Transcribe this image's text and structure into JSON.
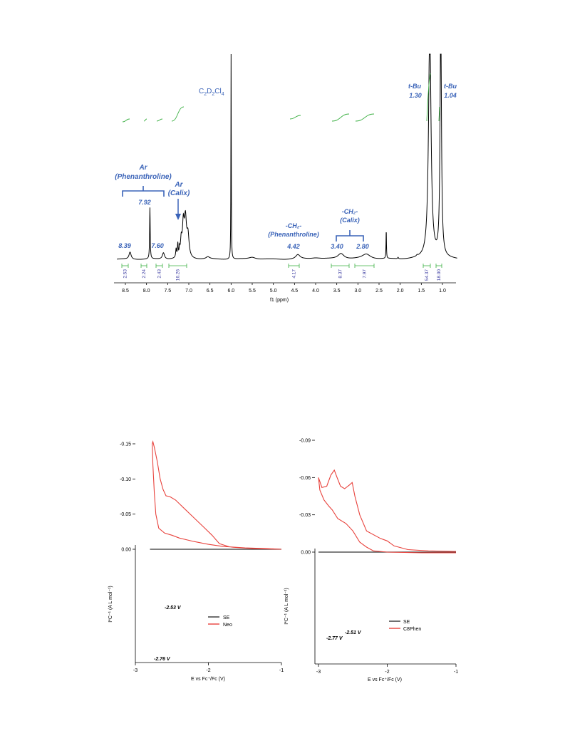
{
  "chart_data": [
    {
      "type": "line",
      "xlabel": "f1 (ppm)",
      "xlim": [
        8.7,
        0.6
      ],
      "x_ticks": [
        "8.5",
        "8.0",
        "7.5",
        "7.0",
        "6.5",
        "6.0",
        "5.5",
        "5.0",
        "4.5",
        "4.0",
        "3.5",
        "3.0",
        "2.5",
        "2.0",
        "1.5",
        "1.0"
      ],
      "solvent_label": "C2D2Cl4",
      "peaks": [
        {
          "ppm": 8.39,
          "label": "8.39"
        },
        {
          "ppm": 7.92,
          "label": "7.92"
        },
        {
          "ppm": 7.6,
          "label": "7.60"
        },
        {
          "ppm": 4.42,
          "label": "4.42"
        },
        {
          "ppm": 3.4,
          "label": "3.40"
        },
        {
          "ppm": 2.8,
          "label": "2.80"
        },
        {
          "ppm": 1.3,
          "label": "1.30"
        },
        {
          "ppm": 1.04,
          "label": "1.04"
        }
      ],
      "integrations": [
        {
          "ppm": 8.39,
          "value": "2.53"
        },
        {
          "ppm": 7.94,
          "value": "2.24"
        },
        {
          "ppm": 7.6,
          "value": "2.43"
        },
        {
          "ppm": 7.1,
          "value": "16.26"
        },
        {
          "ppm": 4.42,
          "value": "4.17"
        },
        {
          "ppm": 3.35,
          "value": "8.37"
        },
        {
          "ppm": 2.85,
          "value": "7.97"
        },
        {
          "ppm": 1.3,
          "value": "54.37"
        },
        {
          "ppm": 1.04,
          "value": "18.00"
        }
      ],
      "annotations": {
        "ar_phen_1": "Ar",
        "ar_phen_2": "(Phenanthroline)",
        "ar_calix_1": "Ar",
        "ar_calix_2": "(Calix)",
        "ch2_phen_1": "-CH₂-",
        "ch2_phen_2": "(Phenanthroline)",
        "ch2_calix_1": "-CH₂-",
        "ch2_calix_2": "(Calix)",
        "tbu_1": "t-Bu",
        "tbu_2": "t-Bu"
      }
    },
    {
      "type": "line",
      "xlabel": "E vs Fc⁺/Fc (V)",
      "ylabel": "I*C⁻¹ (A L mol⁻¹)",
      "xlim": [
        -3,
        -1
      ],
      "ylim": [
        -0.16,
        0.005
      ],
      "x_ticks": [
        "-3",
        "-2",
        "-1"
      ],
      "y_ticks": [
        "0.00",
        "-0.05",
        "-0.10",
        "-0.15"
      ],
      "series": [
        {
          "name": "SE"
        },
        {
          "name": "Neo"
        }
      ],
      "peak_labels": [
        "-2.53 V",
        "-2.76 V"
      ]
    },
    {
      "type": "line",
      "xlabel": "E vs Fc⁺/Fc (V)",
      "ylabel": "I*C⁻¹ (A L mol⁻¹)",
      "xlim": [
        -3.05,
        -1
      ],
      "ylim": [
        -0.09,
        0.003
      ],
      "x_ticks": [
        "-3",
        "-2",
        "-1"
      ],
      "y_ticks": [
        "0.00",
        "-0.03",
        "-0.06",
        "-0.09"
      ],
      "series": [
        {
          "name": "SE"
        },
        {
          "name": "C8Phen"
        }
      ],
      "peak_labels": [
        "-2.77 V",
        "-2.51 V"
      ]
    }
  ],
  "colors": {
    "spectrum": "#000000",
    "accent": "#3a63b8",
    "integral": "#3cb043",
    "cv_red": "#e8423c",
    "cv_gray": "#333333"
  }
}
